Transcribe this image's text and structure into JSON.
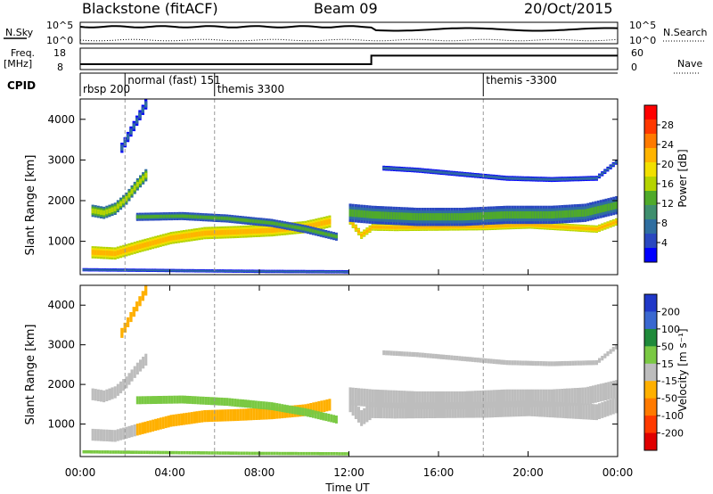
{
  "header": {
    "station": "Blackstone (fitACF)",
    "beam": "Beam 09",
    "date": "20/Oct/2015"
  },
  "nsky_panel": {
    "left_label": "N.Sky",
    "left_ticks": [
      "10^5",
      "10^0"
    ],
    "right_label": "N.Search",
    "right_ticks": [
      "10^5",
      "10^0"
    ]
  },
  "freq_panel": {
    "left_label_top": "Freq.",
    "left_label_bottom": "[MHz]",
    "left_ticks": [
      "18",
      "8"
    ],
    "right_label": "Nave",
    "right_ticks": [
      "60",
      "0"
    ]
  },
  "cpid": {
    "label": "CPID",
    "programs": [
      {
        "name": "rbsp 200",
        "start_hour": 0.0
      },
      {
        "name": "normal (fast) 151",
        "start_hour": 2.0
      },
      {
        "name": "themis 3300",
        "start_hour": 6.0
      },
      {
        "name": "themis -3300",
        "start_hour": 18.0
      }
    ]
  },
  "power_colorbar": {
    "label": "Power [dB]",
    "ticks": [
      "28",
      "24",
      "20",
      "16",
      "12",
      "8",
      "4"
    ],
    "colors": [
      "#ff0000",
      "#ff3800",
      "#ff7a00",
      "#ffb400",
      "#f2e000",
      "#b5d400",
      "#4faa2a",
      "#3f8f6e",
      "#2f6ea0",
      "#2a48c0",
      "#0000ff"
    ]
  },
  "velocity_colorbar": {
    "label": "Velocity [m s⁻¹]",
    "ticks": [
      "200",
      "100",
      "50",
      "15",
      "-15",
      "-50",
      "-100",
      "-200"
    ],
    "colors": [
      "#2038c8",
      "#3a68d0",
      "#1f8a3a",
      "#7ac943",
      "#bdbdbd",
      "#ffb000",
      "#ff7a00",
      "#ff3a00",
      "#e00000"
    ]
  },
  "axes": {
    "ylabel": "Slant Range [km]",
    "yticks": [
      "4000",
      "3000",
      "2000",
      "1000"
    ],
    "xlabel": "Time UT",
    "xticks": [
      "00:00",
      "04:00",
      "08:00",
      "12:00",
      "16:00",
      "20:00",
      "00:00"
    ]
  },
  "chart_data": {
    "type": "heatmap",
    "x_unit": "hours UT",
    "y_unit": "km",
    "xlim": [
      0,
      24
    ],
    "ylim": [
      180,
      4500
    ],
    "dashed_vlines_hours": [
      2,
      6,
      18
    ],
    "nsky_note": "N.Sky near 10^5 all day with gap after 13:00 UT and spikes near 21:00 and 22:00 UT",
    "freq_series": [
      {
        "hour": 0,
        "mhz": 10.5
      },
      {
        "hour": 13,
        "mhz": 10.5
      },
      {
        "hour": 13,
        "mhz": 14.5
      },
      {
        "hour": 24,
        "mhz": 14.5
      }
    ],
    "power_panel": {
      "bands": [
        {
          "x": [
            0.5,
            1.0,
            1.5,
            2.0,
            2.5,
            3.0
          ],
          "y": [
            1750,
            1700,
            1800,
            2050,
            2400,
            2700
          ],
          "thickness_km": 300,
          "value_db": 16
        },
        {
          "x": [
            0.5,
            1.5,
            2.5,
            4.0,
            5.5,
            7.0,
            8.5,
            10.0,
            11.2
          ],
          "y": [
            730,
            700,
            860,
            1080,
            1200,
            1230,
            1270,
            1350,
            1500
          ],
          "thickness_km": 300,
          "value_db": 24
        },
        {
          "x": [
            2.5,
            4.5,
            6.5,
            8.5,
            10.0,
            11.5
          ],
          "y": [
            1600,
            1620,
            1560,
            1450,
            1300,
            1100
          ],
          "thickness_km": 200,
          "value_db": 12
        },
        {
          "x": [
            12.0,
            12.5,
            13.0,
            14.0,
            16.0,
            18.0,
            20.0,
            21.5,
            23.0,
            24.0
          ],
          "y": [
            1500,
            1150,
            1350,
            1340,
            1350,
            1360,
            1400,
            1350,
            1300,
            1500
          ],
          "thickness_km": 180,
          "value_db": 24
        },
        {
          "x": [
            12.0,
            13.0,
            15.0,
            17.0,
            19.0,
            21.0,
            22.5,
            24.0
          ],
          "y": [
            1700,
            1650,
            1600,
            1600,
            1650,
            1650,
            1700,
            1900
          ],
          "thickness_km": 450,
          "value_db": 12
        },
        {
          "x": [
            13.5,
            15.0,
            17.0,
            19.0,
            21.0,
            23.0,
            24.0
          ],
          "y": [
            2800,
            2750,
            2650,
            2550,
            2520,
            2550,
            3000
          ],
          "thickness_km": 120,
          "value_db": 8
        },
        {
          "x": [
            1.8,
            2.2,
            2.6,
            3.0
          ],
          "y": [
            3300,
            3700,
            4100,
            4500
          ],
          "thickness_km": 250,
          "value_db": 8
        },
        {
          "x": [
            0.1,
            4.0,
            8.0,
            12.0
          ],
          "y": [
            300,
            280,
            260,
            250
          ],
          "thickness_km": 80,
          "value_db": 8
        }
      ]
    },
    "velocity_panel": {
      "bands": [
        {
          "x": [
            0.5,
            1.0,
            1.5,
            2.0,
            2.5,
            3.0
          ],
          "y": [
            1750,
            1700,
            1800,
            2050,
            2400,
            2700
          ],
          "thickness_km": 300,
          "value": 0
        },
        {
          "x": [
            0.5,
            1.5,
            2.5
          ],
          "y": [
            730,
            700,
            860
          ],
          "thickness_km": 300,
          "value": 0
        },
        {
          "x": [
            2.5,
            4.0,
            5.5,
            7.0,
            8.5,
            10.0,
            11.2
          ],
          "y": [
            860,
            1080,
            1200,
            1230,
            1270,
            1350,
            1500
          ],
          "thickness_km": 300,
          "value": -40
        },
        {
          "x": [
            2.5,
            4.5,
            6.5,
            8.5,
            10.0,
            11.5
          ],
          "y": [
            1600,
            1620,
            1560,
            1450,
            1300,
            1100
          ],
          "thickness_km": 200,
          "value": 30
        },
        {
          "x": [
            12.0,
            12.5,
            13.0,
            14.0,
            16.0,
            18.0,
            20.0,
            21.5,
            23.0,
            24.0
          ],
          "y": [
            1500,
            1150,
            1350,
            1340,
            1350,
            1360,
            1400,
            1350,
            1300,
            1500
          ],
          "thickness_km": 400,
          "value": 0
        },
        {
          "x": [
            12.0,
            13.0,
            15.0,
            17.0,
            19.0,
            21.0,
            22.5,
            24.0
          ],
          "y": [
            1700,
            1650,
            1600,
            1600,
            1650,
            1650,
            1700,
            1900
          ],
          "thickness_km": 450,
          "value": 0
        },
        {
          "x": [
            13.5,
            15.0,
            17.0,
            19.0,
            21.0,
            23.0,
            24.0
          ],
          "y": [
            2800,
            2750,
            2650,
            2550,
            2520,
            2550,
            3000
          ],
          "thickness_km": 120,
          "value": 5
        },
        {
          "x": [
            1.8,
            2.2,
            2.6,
            3.0
          ],
          "y": [
            3300,
            3700,
            4100,
            4500
          ],
          "thickness_km": 250,
          "value": -40
        },
        {
          "x": [
            0.1,
            4.0,
            8.0,
            12.0
          ],
          "y": [
            300,
            280,
            260,
            250
          ],
          "thickness_km": 80,
          "value": 30
        }
      ]
    }
  }
}
